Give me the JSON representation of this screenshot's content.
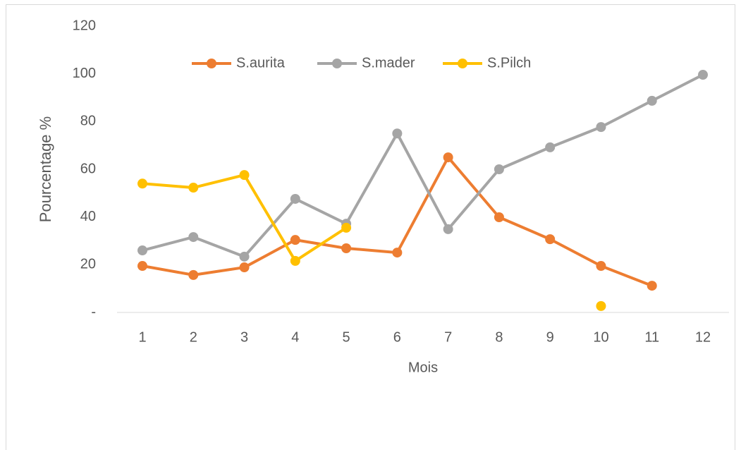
{
  "chart_data": {
    "type": "line",
    "x_label": "Mois",
    "y_label": "Pourcentage %",
    "categories": [
      "1",
      "2",
      "3",
      "4",
      "5",
      "6",
      "7",
      "8",
      "9",
      "10",
      "11",
      "12"
    ],
    "series": [
      {
        "name": "S.aurita",
        "color": "#ED7D31",
        "values": [
          19.5,
          15.7,
          18.9,
          30.4,
          26.9,
          25.1,
          65,
          39.9,
          30.7,
          19.5,
          11.2,
          null
        ]
      },
      {
        "name": "S.mader",
        "color": "#A5A5A5",
        "values": [
          26,
          31.6,
          23.4,
          47.6,
          37.2,
          75,
          34.9,
          60,
          69.2,
          77.7,
          88.7,
          99.6
        ]
      },
      {
        "name": "S.Pilch",
        "color": "#FFC000",
        "values": [
          54,
          52.3,
          57.6,
          21.6,
          35.5,
          null,
          null,
          null,
          null,
          2.7,
          null,
          null
        ]
      }
    ],
    "ylim": [
      0,
      120
    ],
    "yticks": [
      {
        "value": 0,
        "label": "-"
      },
      20,
      40,
      60,
      80,
      100,
      120
    ],
    "grid": false,
    "legend": "top"
  }
}
